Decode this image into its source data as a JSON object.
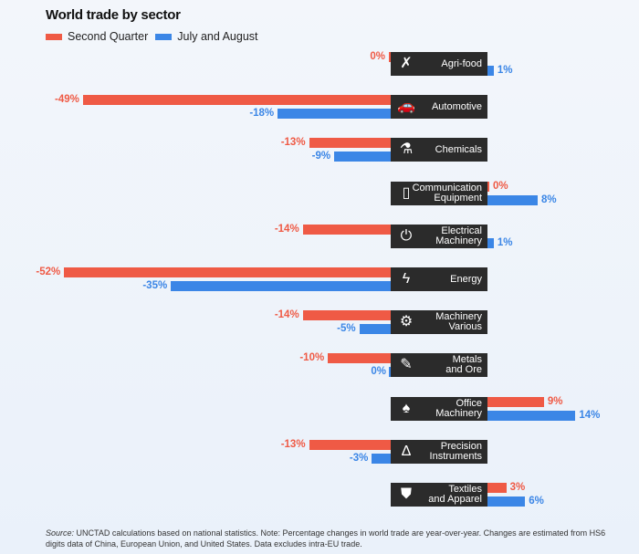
{
  "colors": {
    "second_quarter": "#ef5a45",
    "july_august": "#3b86e6",
    "label_box": "#2b2b2b"
  },
  "chart_data": {
    "type": "bar",
    "orientation": "horizontal",
    "title": "World trade by sector",
    "legend_placement": "top-left",
    "value_unit": "%",
    "grid": false,
    "categories": [
      "Agri-food",
      "Automotive",
      "Chemicals",
      "Communication Equipment",
      "Electrical Machinery",
      "Energy",
      "Machinery Various",
      "Metals and Ore",
      "Office Machinery",
      "Precision Instruments",
      "Textiles and Apparel"
    ],
    "icons": [
      "windmill-field-icon",
      "car-icon",
      "flask-icon",
      "phone-icon",
      "power-gear-icon",
      "lightning-icon",
      "gears-icon",
      "pencil-ore-icon",
      "office-chair-icon",
      "compass-icon",
      "jacket-icon"
    ],
    "series": [
      {
        "name": "Second Quarter",
        "values": [
          0,
          -49,
          -13,
          0,
          -14,
          -52,
          -14,
          -10,
          9,
          -13,
          3
        ]
      },
      {
        "name": "July and August",
        "values": [
          1,
          -18,
          -9,
          8,
          1,
          -35,
          -5,
          0,
          14,
          -3,
          6
        ]
      }
    ]
  },
  "labels": {
    "rows": [
      [
        "Agri-food"
      ],
      [
        "Automotive"
      ],
      [
        "Chemicals"
      ],
      [
        "Communication",
        "Equipment"
      ],
      [
        "Electrical",
        "Machinery"
      ],
      [
        "Energy"
      ],
      [
        "Machinery",
        "Various"
      ],
      [
        "Metals",
        "and Ore"
      ],
      [
        "Office",
        "Machinery"
      ],
      [
        "Precision",
        "Instruments"
      ],
      [
        "Textiles",
        "and Apparel"
      ]
    ]
  },
  "footnote": {
    "source_label": "Source:",
    "text": " UNCTAD calculations based on national statistics. Note: Percentage changes in world trade are year-over-year. Changes are estimated from HS6 digits data of China, European Union, and United States. Data excludes intra-EU trade."
  }
}
